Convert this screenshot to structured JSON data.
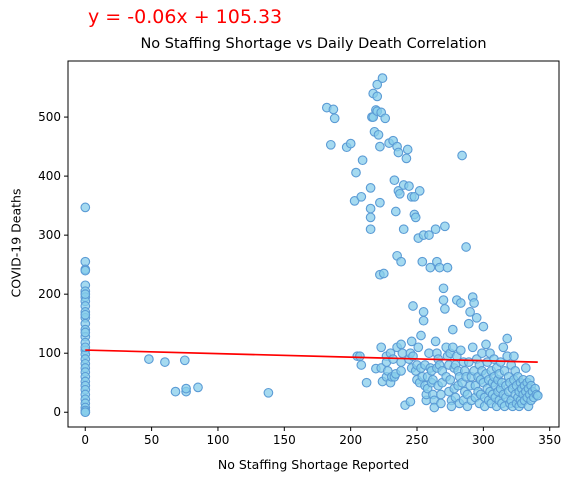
{
  "chart_data": {
    "type": "scatter",
    "title": "No Staffing Shortage vs Daily Death Correlation",
    "xlabel": "No Staffing Shortage Reported",
    "ylabel": "COVID-19 Deaths",
    "annotation": "y = -0.06x + 105.33",
    "xlim": [
      -13,
      357
    ],
    "ylim": [
      -25,
      595
    ],
    "xticks": [
      0,
      50,
      100,
      150,
      200,
      250,
      300,
      350
    ],
    "yticks": [
      0,
      100,
      200,
      300,
      400,
      500
    ],
    "grid": false,
    "regression": {
      "slope": -0.06,
      "intercept": 105.33,
      "x_range": [
        0,
        341
      ]
    },
    "colors": {
      "marker_fill": "#87CEEB",
      "marker_edge": "#5B9BD5",
      "regression_line": "#FF0000",
      "annotation": "#FF0000"
    },
    "points": [
      [
        0,
        347
      ],
      [
        0,
        255
      ],
      [
        0,
        242
      ],
      [
        0,
        215
      ],
      [
        0,
        205
      ],
      [
        0,
        195
      ],
      [
        0,
        188
      ],
      [
        0,
        180
      ],
      [
        0,
        170
      ],
      [
        0,
        160
      ],
      [
        0,
        150
      ],
      [
        0,
        140
      ],
      [
        0,
        128
      ],
      [
        0,
        118
      ],
      [
        0,
        105
      ],
      [
        0,
        98
      ],
      [
        0,
        90
      ],
      [
        0,
        82
      ],
      [
        0,
        75
      ],
      [
        0,
        68
      ],
      [
        0,
        60
      ],
      [
        0,
        52
      ],
      [
        0,
        45
      ],
      [
        0,
        38
      ],
      [
        0,
        30
      ],
      [
        0,
        22
      ],
      [
        0,
        15
      ],
      [
        0,
        8
      ],
      [
        0,
        3
      ],
      [
        0,
        0
      ],
      [
        0,
        0
      ],
      [
        0,
        110
      ],
      [
        0,
        135
      ],
      [
        0,
        165
      ],
      [
        0,
        200
      ],
      [
        0,
        240
      ],
      [
        48,
        90
      ],
      [
        60,
        85
      ],
      [
        68,
        35
      ],
      [
        75,
        88
      ],
      [
        76,
        35
      ],
      [
        76,
        40
      ],
      [
        85,
        42
      ],
      [
        138,
        33
      ],
      [
        182,
        516
      ],
      [
        185,
        453
      ],
      [
        187,
        513
      ],
      [
        188,
        498
      ],
      [
        197,
        449
      ],
      [
        200,
        455
      ],
      [
        203,
        358
      ],
      [
        204,
        406
      ],
      [
        205,
        95
      ],
      [
        207,
        95
      ],
      [
        208,
        80
      ],
      [
        208,
        365
      ],
      [
        209,
        427
      ],
      [
        212,
        50
      ],
      [
        215,
        380
      ],
      [
        215,
        330
      ],
      [
        215,
        345
      ],
      [
        215,
        310
      ],
      [
        216,
        500
      ],
      [
        217,
        540
      ],
      [
        217,
        500
      ],
      [
        218,
        475
      ],
      [
        219,
        512
      ],
      [
        219,
        74
      ],
      [
        220,
        555
      ],
      [
        220,
        535
      ],
      [
        220,
        510
      ],
      [
        221,
        470
      ],
      [
        222,
        450
      ],
      [
        222,
        355
      ],
      [
        222,
        233
      ],
      [
        223,
        508
      ],
      [
        223,
        110
      ],
      [
        223,
        75
      ],
      [
        224,
        566
      ],
      [
        224,
        52
      ],
      [
        225,
        235
      ],
      [
        226,
        498
      ],
      [
        227,
        95
      ],
      [
        227,
        85
      ],
      [
        227,
        60
      ],
      [
        228,
        70
      ],
      [
        229,
        456
      ],
      [
        230,
        100
      ],
      [
        230,
        50
      ],
      [
        231,
        60
      ],
      [
        232,
        460
      ],
      [
        232,
        90
      ],
      [
        233,
        393
      ],
      [
        233,
        60
      ],
      [
        234,
        340
      ],
      [
        234,
        65
      ],
      [
        235,
        450
      ],
      [
        235,
        265
      ],
      [
        235,
        110
      ],
      [
        236,
        440
      ],
      [
        236,
        375
      ],
      [
        237,
        370
      ],
      [
        238,
        255
      ],
      [
        238,
        115
      ],
      [
        238,
        85
      ],
      [
        238,
        70
      ],
      [
        239,
        100
      ],
      [
        240,
        385
      ],
      [
        240,
        310
      ],
      [
        241,
        12
      ],
      [
        242,
        430
      ],
      [
        243,
        445
      ],
      [
        244,
        383
      ],
      [
        244,
        90
      ],
      [
        245,
        100
      ],
      [
        245,
        18
      ],
      [
        246,
        365
      ],
      [
        246,
        75
      ],
      [
        246,
        120
      ],
      [
        247,
        180
      ],
      [
        247,
        95
      ],
      [
        248,
        365
      ],
      [
        248,
        335
      ],
      [
        249,
        330
      ],
      [
        249,
        70
      ],
      [
        250,
        80
      ],
      [
        250,
        55
      ],
      [
        251,
        295
      ],
      [
        251,
        110
      ],
      [
        252,
        375
      ],
      [
        252,
        50
      ],
      [
        253,
        130
      ],
      [
        253,
        75
      ],
      [
        254,
        255
      ],
      [
        254,
        60
      ],
      [
        255,
        300
      ],
      [
        255,
        170
      ],
      [
        255,
        155
      ],
      [
        256,
        80
      ],
      [
        256,
        45
      ],
      [
        257,
        20
      ],
      [
        257,
        30
      ],
      [
        258,
        60
      ],
      [
        258,
        40
      ],
      [
        259,
        300
      ],
      [
        259,
        100
      ],
      [
        260,
        245
      ],
      [
        260,
        75
      ],
      [
        261,
        70
      ],
      [
        261,
        50
      ],
      [
        262,
        55
      ],
      [
        262,
        30
      ],
      [
        263,
        20
      ],
      [
        263,
        8
      ],
      [
        264,
        310
      ],
      [
        264,
        120
      ],
      [
        265,
        255
      ],
      [
        265,
        100
      ],
      [
        265,
        75
      ],
      [
        266,
        90
      ],
      [
        266,
        45
      ],
      [
        267,
        245
      ],
      [
        267,
        80
      ],
      [
        268,
        30
      ],
      [
        268,
        15
      ],
      [
        269,
        70
      ],
      [
        269,
        50
      ],
      [
        270,
        210
      ],
      [
        270,
        190
      ],
      [
        271,
        315
      ],
      [
        271,
        175
      ],
      [
        272,
        60
      ],
      [
        272,
        110
      ],
      [
        273,
        245
      ],
      [
        273,
        95
      ],
      [
        274,
        35
      ],
      [
        274,
        80
      ],
      [
        275,
        100
      ],
      [
        275,
        55
      ],
      [
        276,
        20
      ],
      [
        276,
        10
      ],
      [
        277,
        110
      ],
      [
        277,
        140
      ],
      [
        278,
        75
      ],
      [
        278,
        40
      ],
      [
        279,
        80
      ],
      [
        279,
        25
      ],
      [
        280,
        190
      ],
      [
        280,
        95
      ],
      [
        281,
        45
      ],
      [
        281,
        70
      ],
      [
        282,
        15
      ],
      [
        282,
        60
      ],
      [
        283,
        185
      ],
      [
        283,
        105
      ],
      [
        284,
        435
      ],
      [
        284,
        50
      ],
      [
        285,
        20
      ],
      [
        285,
        85
      ],
      [
        286,
        35
      ],
      [
        286,
        70
      ],
      [
        287,
        280
      ],
      [
        287,
        60
      ],
      [
        288,
        10
      ],
      [
        288,
        30
      ],
      [
        289,
        150
      ],
      [
        289,
        85
      ],
      [
        290,
        170
      ],
      [
        290,
        45
      ],
      [
        291,
        60
      ],
      [
        291,
        20
      ],
      [
        292,
        195
      ],
      [
        292,
        110
      ],
      [
        293,
        185
      ],
      [
        293,
        70
      ],
      [
        294,
        45
      ],
      [
        294,
        25
      ],
      [
        295,
        160
      ],
      [
        295,
        90
      ],
      [
        296,
        35
      ],
      [
        296,
        60
      ],
      [
        297,
        15
      ],
      [
        297,
        80
      ],
      [
        298,
        55
      ],
      [
        298,
        30
      ],
      [
        299,
        100
      ],
      [
        299,
        70
      ],
      [
        300,
        145
      ],
      [
        300,
        50
      ],
      [
        301,
        25
      ],
      [
        301,
        10
      ],
      [
        302,
        115
      ],
      [
        302,
        65
      ],
      [
        303,
        40
      ],
      [
        303,
        85
      ],
      [
        304,
        20
      ],
      [
        304,
        55
      ],
      [
        305,
        100
      ],
      [
        305,
        35
      ],
      [
        306,
        70
      ],
      [
        306,
        15
      ],
      [
        307,
        50
      ],
      [
        307,
        30
      ],
      [
        308,
        90
      ],
      [
        308,
        60
      ],
      [
        309,
        25
      ],
      [
        309,
        45
      ],
      [
        310,
        10
      ],
      [
        310,
        75
      ],
      [
        311,
        55
      ],
      [
        311,
        35
      ],
      [
        312,
        20
      ],
      [
        312,
        65
      ],
      [
        313,
        40
      ],
      [
        313,
        85
      ],
      [
        314,
        15
      ],
      [
        314,
        50
      ],
      [
        315,
        30
      ],
      [
        315,
        110
      ],
      [
        316,
        10
      ],
      [
        316,
        70
      ],
      [
        317,
        45
      ],
      [
        317,
        25
      ],
      [
        318,
        125
      ],
      [
        318,
        95
      ],
      [
        319,
        60
      ],
      [
        319,
        35
      ],
      [
        320,
        15
      ],
      [
        320,
        50
      ],
      [
        321,
        80
      ],
      [
        321,
        20
      ],
      [
        322,
        40
      ],
      [
        322,
        10
      ],
      [
        323,
        95
      ],
      [
        323,
        55
      ],
      [
        324,
        30
      ],
      [
        324,
        70
      ],
      [
        325,
        15
      ],
      [
        325,
        45
      ],
      [
        326,
        25
      ],
      [
        326,
        60
      ],
      [
        327,
        10
      ],
      [
        327,
        35
      ],
      [
        328,
        50
      ],
      [
        328,
        20
      ],
      [
        329,
        40
      ],
      [
        329,
        15
      ],
      [
        330,
        30
      ],
      [
        330,
        55
      ],
      [
        331,
        20
      ],
      [
        331,
        45
      ],
      [
        332,
        75
      ],
      [
        332,
        35
      ],
      [
        333,
        25
      ],
      [
        333,
        50
      ],
      [
        334,
        10
      ],
      [
        334,
        40
      ],
      [
        335,
        55
      ],
      [
        335,
        30
      ],
      [
        336,
        20
      ],
      [
        336,
        45
      ],
      [
        337,
        35
      ],
      [
        338,
        25
      ],
      [
        339,
        40
      ],
      [
        340,
        30
      ],
      [
        341,
        28
      ]
    ]
  }
}
